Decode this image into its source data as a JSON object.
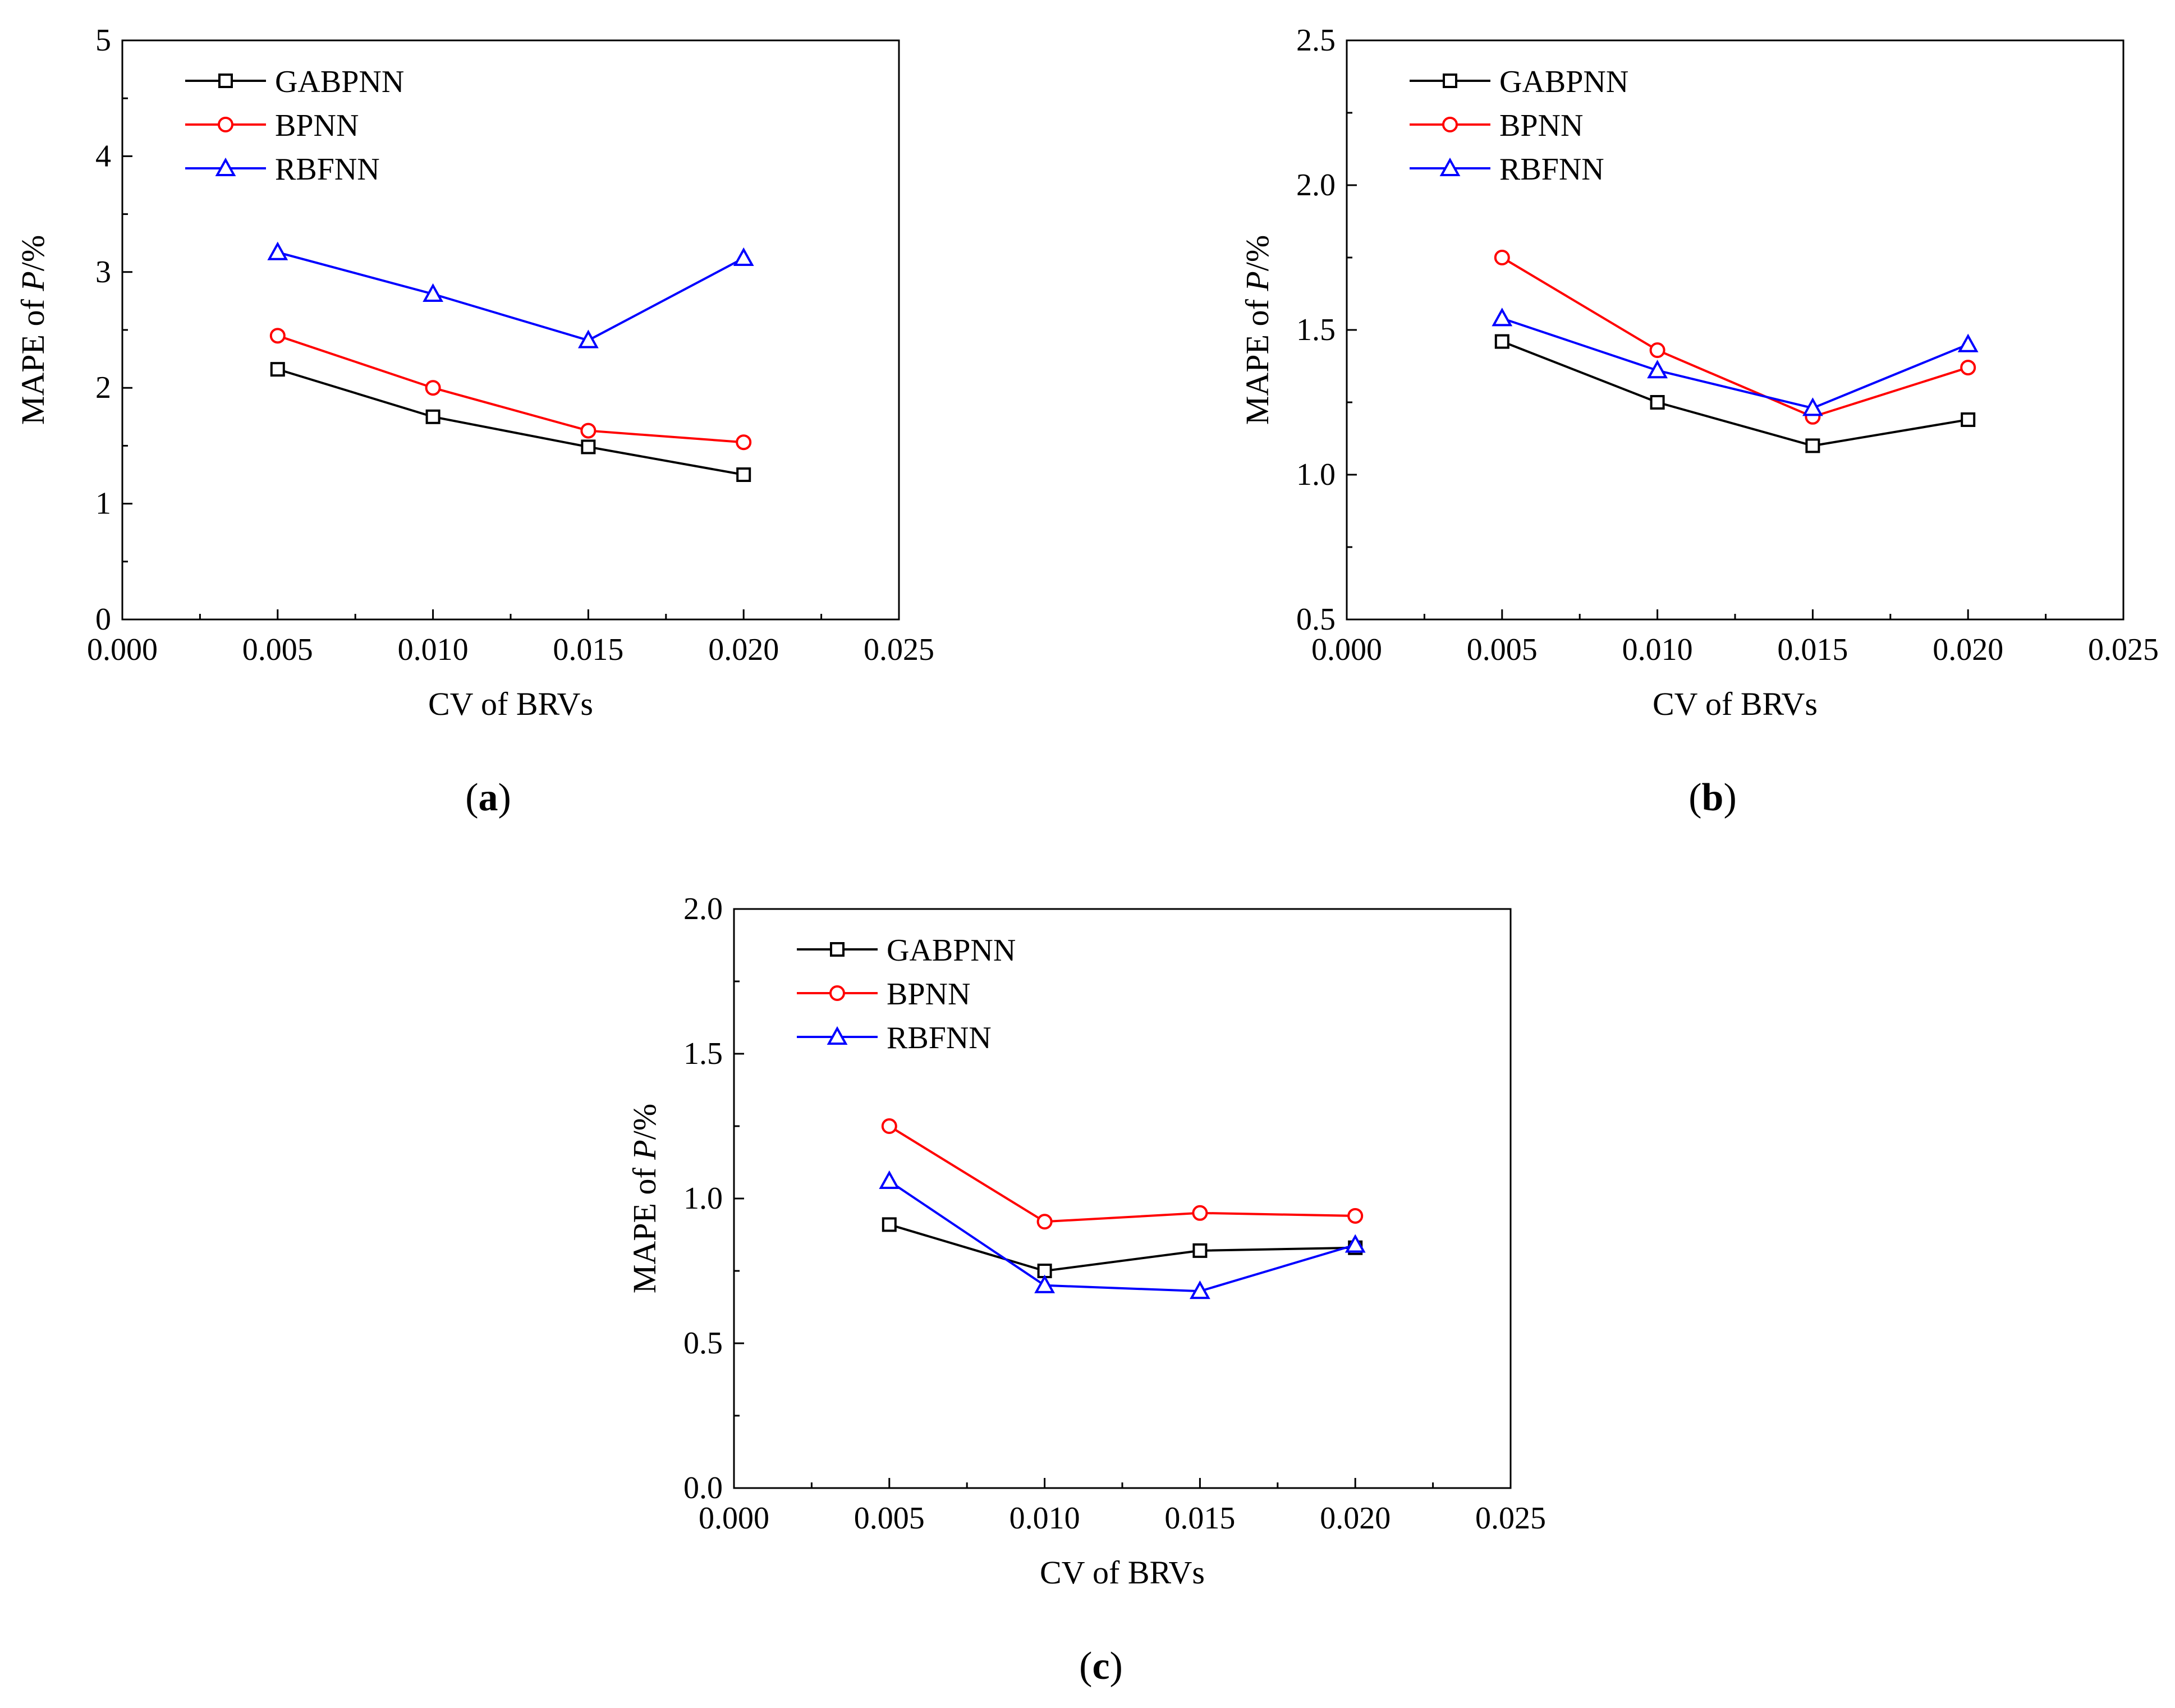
{
  "colors": {
    "GABPNN": "#000000",
    "BPNN": "#ff0000",
    "RBFNN": "#0000ff"
  },
  "chart_data": [
    {
      "type": "line",
      "panel": "a",
      "xlabel": "CV of BRVs",
      "ylabel_prefix": "MAPE of ",
      "ylabel_var": "P",
      "ylabel_suffix": "/%",
      "xlim": [
        0.0,
        0.025
      ],
      "ylim": [
        0,
        5
      ],
      "xticks": [
        "0.000",
        "0.005",
        "0.010",
        "0.015",
        "0.020",
        "0.025"
      ],
      "yticks": [
        "0",
        "1",
        "2",
        "3",
        "4",
        "5"
      ],
      "x": [
        0.005,
        0.01,
        0.015,
        0.02
      ],
      "legend_position": "top-left",
      "series": [
        {
          "name": "GABPNN",
          "marker": "square",
          "values": [
            2.16,
            1.75,
            1.49,
            1.25
          ]
        },
        {
          "name": "BPNN",
          "marker": "circle",
          "values": [
            2.45,
            2.0,
            1.63,
            1.53
          ]
        },
        {
          "name": "RBFNN",
          "marker": "triangle",
          "values": [
            3.17,
            2.81,
            2.41,
            3.12
          ]
        }
      ]
    },
    {
      "type": "line",
      "panel": "b",
      "xlabel": "CV of BRVs",
      "ylabel_prefix": "MAPE of ",
      "ylabel_var": "P",
      "ylabel_suffix": "/%",
      "xlim": [
        0.0,
        0.025
      ],
      "ylim": [
        0.5,
        2.5
      ],
      "xticks": [
        "0.000",
        "0.005",
        "0.010",
        "0.015",
        "0.020",
        "0.025"
      ],
      "yticks": [
        "0.5",
        "1.0",
        "1.5",
        "2.0",
        "2.5"
      ],
      "x": [
        0.005,
        0.01,
        0.015,
        0.02
      ],
      "legend_position": "top-left",
      "series": [
        {
          "name": "GABPNN",
          "marker": "square",
          "values": [
            1.46,
            1.25,
            1.1,
            1.19
          ]
        },
        {
          "name": "BPNN",
          "marker": "circle",
          "values": [
            1.75,
            1.43,
            1.2,
            1.37
          ]
        },
        {
          "name": "RBFNN",
          "marker": "triangle",
          "values": [
            1.54,
            1.36,
            1.23,
            1.45
          ]
        }
      ]
    },
    {
      "type": "line",
      "panel": "c",
      "xlabel": "CV of BRVs",
      "ylabel_prefix": "MAPE of ",
      "ylabel_var": "P",
      "ylabel_suffix": "/%",
      "xlim": [
        0.0,
        0.025
      ],
      "ylim": [
        0.0,
        2.0
      ],
      "xticks": [
        "0.000",
        "0.005",
        "0.010",
        "0.015",
        "0.020",
        "0.025"
      ],
      "yticks": [
        "0.0",
        "0.5",
        "1.0",
        "1.5",
        "2.0"
      ],
      "x": [
        0.005,
        0.01,
        0.015,
        0.02
      ],
      "legend_position": "top-left",
      "series": [
        {
          "name": "GABPNN",
          "marker": "square",
          "values": [
            0.91,
            0.75,
            0.82,
            0.83
          ]
        },
        {
          "name": "BPNN",
          "marker": "circle",
          "values": [
            1.25,
            0.92,
            0.95,
            0.94
          ]
        },
        {
          "name": "RBFNN",
          "marker": "triangle",
          "values": [
            1.06,
            0.7,
            0.68,
            0.84
          ]
        }
      ]
    }
  ]
}
